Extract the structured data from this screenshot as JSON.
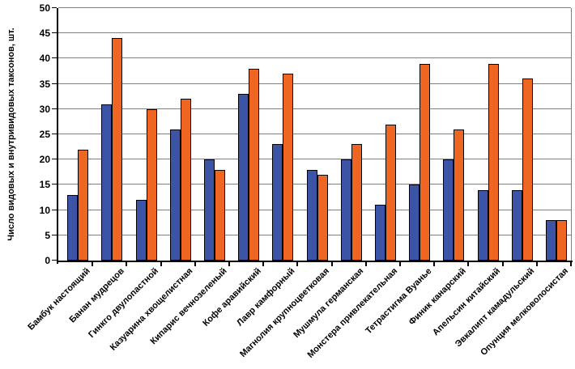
{
  "chart_data": {
    "type": "bar",
    "title": "",
    "xlabel": "",
    "ylabel": "Число видовых и внутривидовых таксонов, шт.",
    "ylim": [
      0,
      50
    ],
    "yticks": [
      0,
      5,
      10,
      15,
      20,
      25,
      30,
      35,
      40,
      45,
      50
    ],
    "grid": true,
    "legend_position": "none",
    "categories": [
      "Бамбук настоящий",
      "Банан мудрецов",
      "Гинкго двулопастной",
      "Казуарина хвощелистная",
      "Кипарис вечнозеленый",
      "Кофе аравийский",
      "Лавр камфорный",
      "Магнолия крупноцветковая",
      "Мушмула германская",
      "Монстера привлекательная",
      "Тетрастигма Вуанье",
      "Финик канарский",
      "Апельсин китайский",
      "Эвкалипт камадульский",
      "Опунция мелковолосистая"
    ],
    "series": [
      {
        "color": "#3B54A5",
        "values": [
          13,
          31,
          12,
          26,
          20,
          33,
          23,
          18,
          20,
          11,
          15,
          20,
          14,
          14,
          8
        ]
      },
      {
        "color": "#EF6522",
        "values": [
          22,
          44,
          30,
          32,
          18,
          38,
          37,
          17,
          23,
          27,
          39,
          26,
          39,
          36,
          8
        ]
      }
    ]
  },
  "colors": {
    "background": "#FFFFFF",
    "gridline": "#808080",
    "plot_border": "#808080",
    "axis": "#000000",
    "text": "#000000",
    "series1": "#3B54A5",
    "series2": "#EF6522"
  }
}
